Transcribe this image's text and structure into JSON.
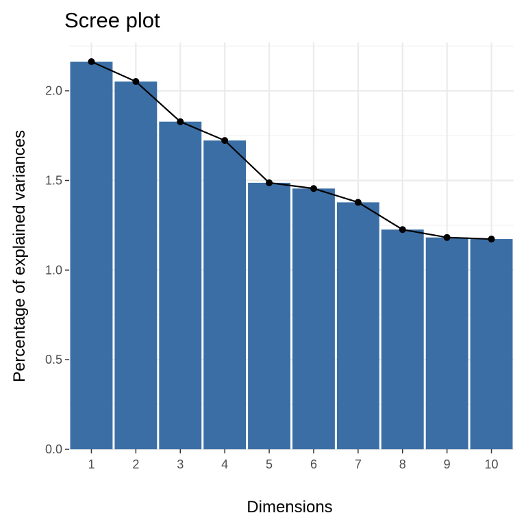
{
  "chart_data": {
    "type": "bar",
    "title": "Scree plot",
    "xlabel": "Dimensions",
    "ylabel": "Percentage of explained variances",
    "categories": [
      "1",
      "2",
      "3",
      "4",
      "5",
      "6",
      "7",
      "8",
      "9",
      "10"
    ],
    "values": [
      2.163,
      2.052,
      1.828,
      1.723,
      1.487,
      1.455,
      1.378,
      1.226,
      1.182,
      1.173
    ],
    "ylim": [
      0,
      2.27
    ],
    "yticks": [
      "0.0",
      "0.5",
      "1.0",
      "1.5",
      "2.0"
    ],
    "line_overlay": true,
    "grid": true,
    "colors": {
      "bar": "#3a6ea5",
      "line": "#000000",
      "panel": "#ffffff",
      "grid": "#ebebeb"
    }
  }
}
